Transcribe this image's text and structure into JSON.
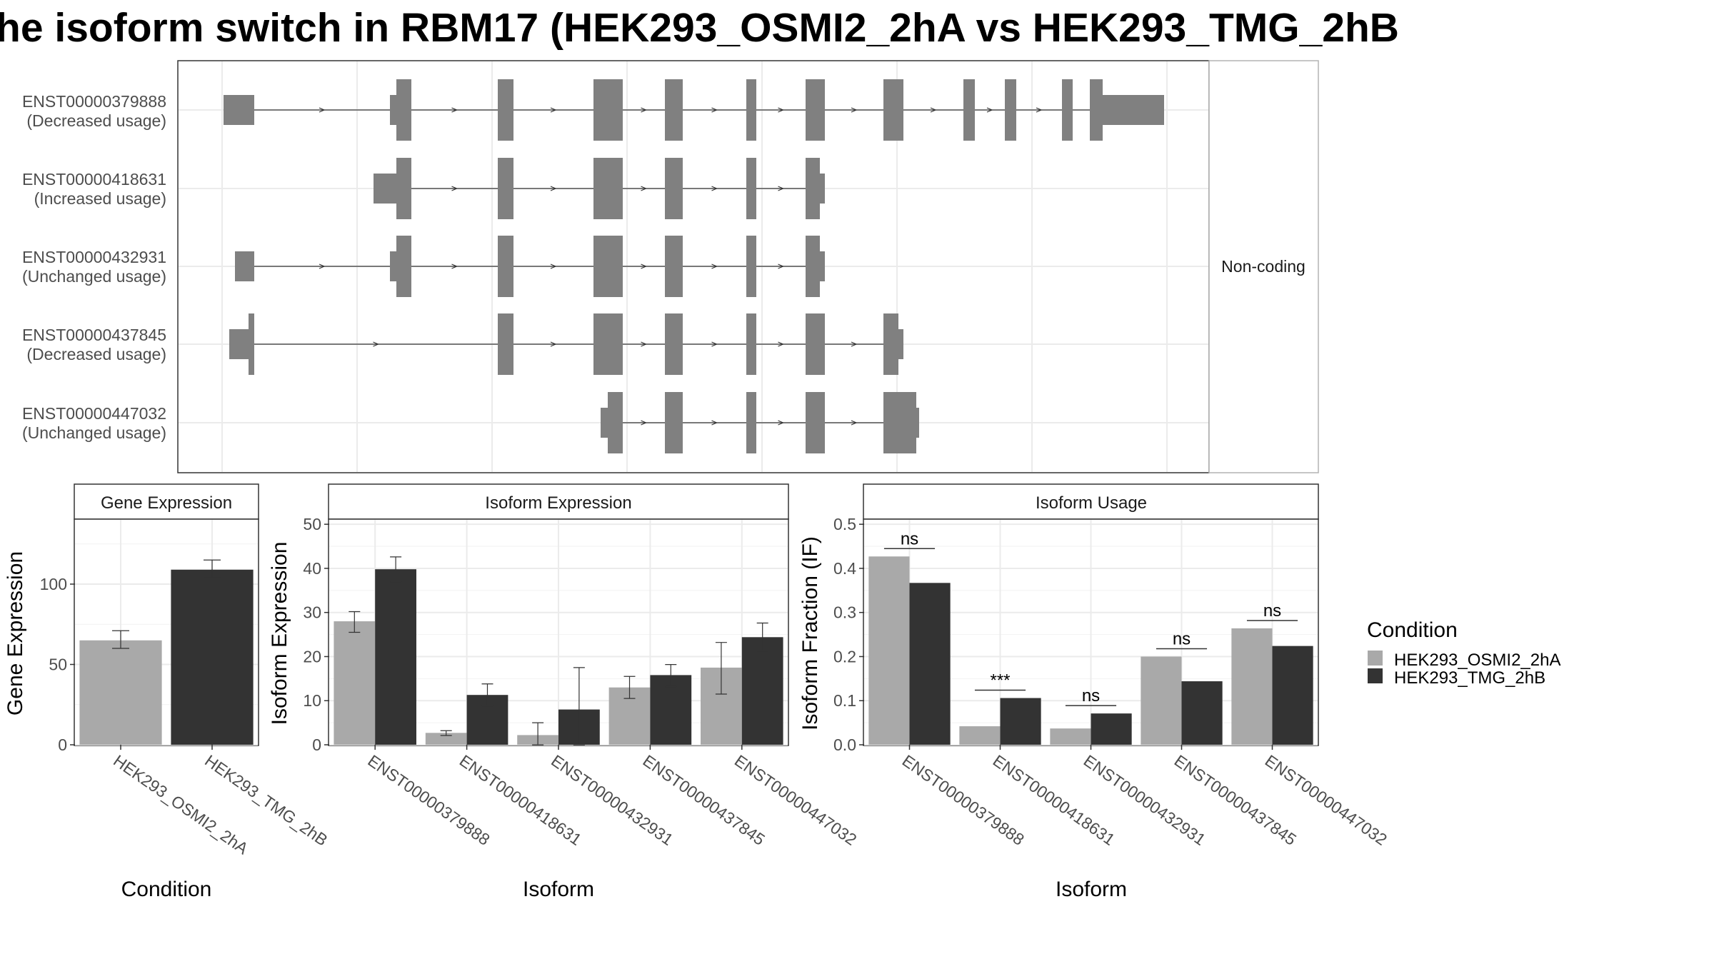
{
  "title": "he isoform switch in RBM17 (HEK293_OSMI2_2hA vs HEK293_TMG_2hB",
  "colors": {
    "cond1": "#a9a9a9",
    "cond2": "#333333",
    "exon": "#808080",
    "grid": "#ebebeb",
    "frame": "#333333"
  },
  "structure_panel": {
    "facet_label": "Non-coding",
    "transcripts": [
      {
        "id": "ENST00000379888",
        "status": "(Decreased usage)"
      },
      {
        "id": "ENST00000418631",
        "status": "(Increased usage)"
      },
      {
        "id": "ENST00000432931",
        "status": "(Unchanged usage)"
      },
      {
        "id": "ENST00000437845",
        "status": "(Decreased usage)"
      },
      {
        "id": "ENST00000447032",
        "status": "(Unchanged usage)"
      }
    ]
  },
  "legend": {
    "title": "Condition",
    "items": [
      "HEK293_OSMI2_2hA",
      "HEK293_TMG_2hB"
    ]
  },
  "chart_data": [
    {
      "type": "bar",
      "title": "Gene Expression",
      "xlabel": "Condition",
      "ylabel": "Gene Expression",
      "categories": [
        "HEK293_OSMI2_2hA",
        "HEK293_TMG_2hB"
      ],
      "values": [
        65,
        109
      ],
      "errors": [
        [
          60,
          71
        ],
        [
          104,
          115
        ]
      ],
      "ylim": [
        0,
        140
      ],
      "yticks": [
        0,
        50,
        100
      ]
    },
    {
      "type": "bar",
      "title": "Isoform Expression",
      "xlabel": "Isoform",
      "ylabel": "Isoform Expression",
      "categories": [
        "ENST00000379888",
        "ENST00000418631",
        "ENST00000432931",
        "ENST00000437845",
        "ENST00000447032"
      ],
      "series": [
        {
          "name": "HEK293_OSMI2_2hA",
          "values": [
            28,
            2.7,
            2.2,
            13,
            17.5
          ],
          "errors": [
            [
              25.5,
              30.2
            ],
            [
              2.1,
              3.2
            ],
            [
              0,
              5
            ],
            [
              10.5,
              15.5
            ],
            [
              11.5,
              23.2
            ]
          ]
        },
        {
          "name": "HEK293_TMG_2hB",
          "values": [
            39.8,
            11.3,
            8,
            15.8,
            24.4
          ],
          "errors": [
            [
              37,
              42.6
            ],
            [
              8.8,
              13.8
            ],
            [
              0,
              17.5
            ],
            [
              13.2,
              18.2
            ],
            [
              21.2,
              27.6
            ]
          ]
        }
      ],
      "ylim": [
        0,
        51
      ],
      "yticks": [
        0,
        10,
        20,
        30,
        40,
        50
      ]
    },
    {
      "type": "bar",
      "title": "Isoform Usage",
      "xlabel": "Isoform",
      "ylabel": "Isoform Fraction (IF)",
      "categories": [
        "ENST00000379888",
        "ENST00000418631",
        "ENST00000432931",
        "ENST00000437845",
        "ENST00000447032"
      ],
      "series": [
        {
          "name": "HEK293_OSMI2_2hA",
          "values": [
            0.427,
            0.042,
            0.037,
            0.2,
            0.264
          ]
        },
        {
          "name": "HEK293_TMG_2hB",
          "values": [
            0.367,
            0.106,
            0.071,
            0.144,
            0.224
          ]
        }
      ],
      "significance": [
        "ns",
        "***",
        "ns",
        "ns",
        "ns"
      ],
      "ylim": [
        0,
        0.51
      ],
      "yticks": [
        "0.0",
        "0.1",
        "0.2",
        "0.3",
        "0.4",
        "0.5"
      ]
    }
  ]
}
